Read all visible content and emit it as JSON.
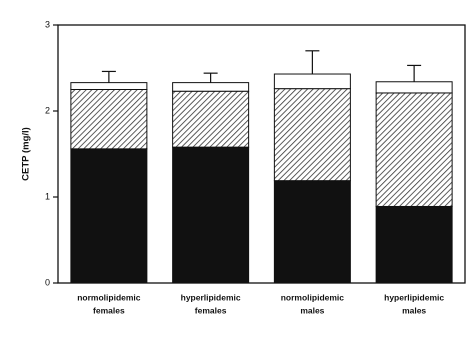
{
  "chart_data": {
    "type": "stacked-bar",
    "ylabel": "CETP (mg/l)",
    "categories": [
      [
        "normolipidemic",
        "females"
      ],
      [
        "hyperlipidemic",
        "females"
      ],
      [
        "normolipidemic",
        "males"
      ],
      [
        "hyperlipidemic",
        "males"
      ]
    ],
    "series": [
      {
        "color": "#111111",
        "values": [
          1.56,
          1.58,
          1.19,
          0.89
        ]
      },
      {
        "color": "#333333",
        "hatch": true,
        "values": [
          0.69,
          0.65,
          1.07,
          1.32
        ]
      },
      {
        "color": "#ffffff",
        "values": [
          0.08,
          0.1,
          0.17,
          0.13
        ]
      }
    ],
    "errors": [
      0.13,
      0.11,
      0.27,
      0.19
    ],
    "ylim": [
      0,
      3
    ],
    "yticks": [
      0,
      1,
      2,
      3
    ]
  }
}
